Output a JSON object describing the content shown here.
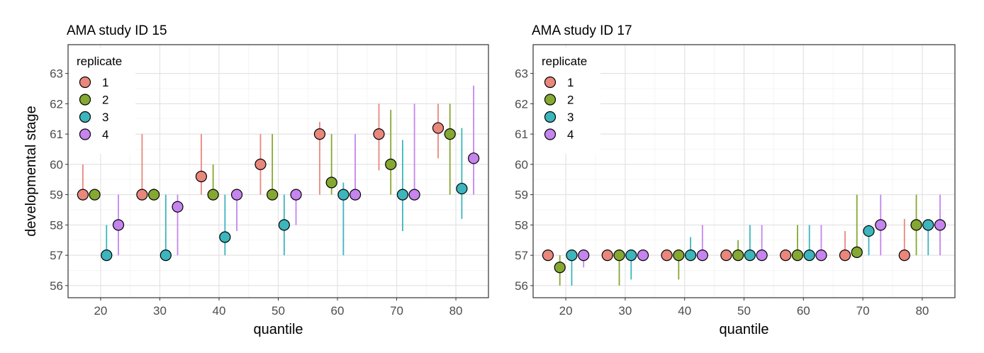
{
  "chart_data": [
    {
      "type": "scatter",
      "title": "AMA study ID 15",
      "xlabel": "quantile",
      "ylabel": "developmental stage",
      "x_ticks": [
        20,
        30,
        40,
        50,
        60,
        70,
        80
      ],
      "y_ticks": [
        56,
        57,
        58,
        59,
        60,
        61,
        62,
        63
      ],
      "xlim": [
        14.5,
        85.5
      ],
      "ylim": [
        55.6,
        63.95
      ],
      "grid": true,
      "legend": {
        "title": "replicate",
        "position": "top-left"
      },
      "series": [
        {
          "name": "1",
          "color": "#e9877d",
          "points": [
            {
              "x": 20,
              "y": 59,
              "low": 59,
              "high": 60
            },
            {
              "x": 30,
              "y": 59,
              "low": 59,
              "high": 61
            },
            {
              "x": 40,
              "y": 59.6,
              "low": 59,
              "high": 61
            },
            {
              "x": 50,
              "y": 60,
              "low": 59,
              "high": 61
            },
            {
              "x": 60,
              "y": 61,
              "low": 59,
              "high": 61.4
            },
            {
              "x": 70,
              "y": 61,
              "low": 59.8,
              "high": 62
            },
            {
              "x": 80,
              "y": 61.2,
              "low": 60.2,
              "high": 62
            }
          ]
        },
        {
          "name": "2",
          "color": "#85a832",
          "points": [
            {
              "x": 20,
              "y": 59,
              "low": 59,
              "high": 59
            },
            {
              "x": 30,
              "y": 59,
              "low": 59,
              "high": 59.2
            },
            {
              "x": 40,
              "y": 59,
              "low": 59,
              "high": 60
            },
            {
              "x": 50,
              "y": 59,
              "low": 59,
              "high": 61
            },
            {
              "x": 60,
              "y": 59.4,
              "low": 59,
              "high": 61
            },
            {
              "x": 70,
              "y": 60,
              "low": 59,
              "high": 61.8
            },
            {
              "x": 80,
              "y": 61,
              "low": 59,
              "high": 62
            }
          ]
        },
        {
          "name": "3",
          "color": "#3db5bc",
          "points": [
            {
              "x": 20,
              "y": 57,
              "low": 57,
              "high": 58
            },
            {
              "x": 30,
              "y": 57,
              "low": 57,
              "high": 59
            },
            {
              "x": 40,
              "y": 57.6,
              "low": 57,
              "high": 59
            },
            {
              "x": 50,
              "y": 58,
              "low": 57,
              "high": 59
            },
            {
              "x": 60,
              "y": 59,
              "low": 57,
              "high": 59.4
            },
            {
              "x": 70,
              "y": 59,
              "low": 57.8,
              "high": 60.8
            },
            {
              "x": 80,
              "y": 59.2,
              "low": 58.2,
              "high": 61.2
            }
          ]
        },
        {
          "name": "4",
          "color": "#c584ee",
          "points": [
            {
              "x": 20,
              "y": 58,
              "low": 57,
              "high": 59
            },
            {
              "x": 30,
              "y": 58.6,
              "low": 57,
              "high": 59
            },
            {
              "x": 40,
              "y": 59,
              "low": 57.8,
              "high": 59
            },
            {
              "x": 50,
              "y": 59,
              "low": 58,
              "high": 59
            },
            {
              "x": 60,
              "y": 59,
              "low": 59,
              "high": 61
            },
            {
              "x": 70,
              "y": 59,
              "low": 59,
              "high": 62
            },
            {
              "x": 80,
              "y": 60.2,
              "low": 59,
              "high": 62.6
            }
          ]
        }
      ]
    },
    {
      "type": "scatter",
      "title": "AMA study ID 17",
      "xlabel": "quantile",
      "ylabel": "",
      "x_ticks": [
        20,
        30,
        40,
        50,
        60,
        70,
        80
      ],
      "y_ticks": [
        56,
        57,
        58,
        59,
        60,
        61,
        62,
        63
      ],
      "xlim": [
        14.5,
        85.5
      ],
      "ylim": [
        55.6,
        63.95
      ],
      "grid": true,
      "legend": {
        "title": "replicate",
        "position": "top-left"
      },
      "series": [
        {
          "name": "1",
          "color": "#e9877d",
          "points": [
            {
              "x": 20,
              "y": 57,
              "low": 57,
              "high": 57
            },
            {
              "x": 30,
              "y": 57,
              "low": 57,
              "high": 57
            },
            {
              "x": 40,
              "y": 57,
              "low": 57,
              "high": 57
            },
            {
              "x": 50,
              "y": 57,
              "low": 57,
              "high": 57
            },
            {
              "x": 60,
              "y": 57,
              "low": 57,
              "high": 57
            },
            {
              "x": 70,
              "y": 57,
              "low": 57,
              "high": 57.8
            },
            {
              "x": 80,
              "y": 57,
              "low": 57,
              "high": 58.2
            }
          ]
        },
        {
          "name": "2",
          "color": "#85a832",
          "points": [
            {
              "x": 20,
              "y": 56.6,
              "low": 56,
              "high": 57
            },
            {
              "x": 30,
              "y": 57,
              "low": 56,
              "high": 57
            },
            {
              "x": 40,
              "y": 57,
              "low": 56.2,
              "high": 57
            },
            {
              "x": 50,
              "y": 57,
              "low": 57,
              "high": 57.5
            },
            {
              "x": 60,
              "y": 57,
              "low": 57,
              "high": 58
            },
            {
              "x": 70,
              "y": 57.1,
              "low": 57,
              "high": 59
            },
            {
              "x": 80,
              "y": 58,
              "low": 57,
              "high": 59
            }
          ]
        },
        {
          "name": "3",
          "color": "#3db5bc",
          "points": [
            {
              "x": 20,
              "y": 57,
              "low": 56,
              "high": 57
            },
            {
              "x": 30,
              "y": 57,
              "low": 56.2,
              "high": 57
            },
            {
              "x": 40,
              "y": 57,
              "low": 57,
              "high": 57.6
            },
            {
              "x": 50,
              "y": 57,
              "low": 57,
              "high": 58
            },
            {
              "x": 60,
              "y": 57,
              "low": 57,
              "high": 58
            },
            {
              "x": 70,
              "y": 57.8,
              "low": 57,
              "high": 58
            },
            {
              "x": 80,
              "y": 58,
              "low": 57,
              "high": 58
            }
          ]
        },
        {
          "name": "4",
          "color": "#c584ee",
          "points": [
            {
              "x": 20,
              "y": 57,
              "low": 56.6,
              "high": 57
            },
            {
              "x": 30,
              "y": 57,
              "low": 57,
              "high": 57
            },
            {
              "x": 40,
              "y": 57,
              "low": 57,
              "high": 58
            },
            {
              "x": 50,
              "y": 57,
              "low": 57,
              "high": 58
            },
            {
              "x": 60,
              "y": 57,
              "low": 57,
              "high": 58
            },
            {
              "x": 70,
              "y": 58,
              "low": 57,
              "high": 59
            },
            {
              "x": 80,
              "y": 58,
              "low": 57,
              "high": 59
            }
          ]
        }
      ]
    }
  ]
}
